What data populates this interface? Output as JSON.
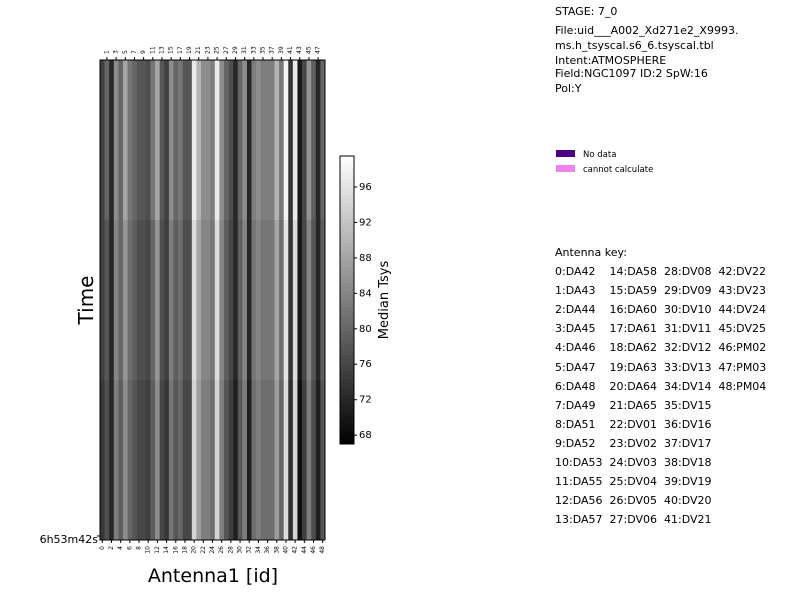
{
  "info": {
    "stage": "STAGE: 7_0",
    "file1": "File:uid___A002_Xd271e2_X9993.",
    "file2": "ms.h_tsyscal.s6_6.tsyscal.tbl",
    "intent": "Intent:ATMOSPHERE",
    "field": "Field:NGC1097 ID:2 SpW:16",
    "pol": "Pol:Y"
  },
  "legend": [
    {
      "label": "No data",
      "color": "#4b0082"
    },
    {
      "label": "cannot calculate",
      "color": "#ee82ee"
    }
  ],
  "antenna_key": {
    "title": "Antenna key:",
    "lines": [
      "0:DA42    14:DA58  28:DV08  42:DV22",
      "1:DA43    15:DA59  29:DV09  43:DV23",
      "2:DA44    16:DA60  30:DV10  44:DV24",
      "3:DA45    17:DA61  31:DV11  45:DV25",
      "4:DA46    18:DA62  32:DV12  46:PM02",
      "5:DA47    19:DA63  33:DV13  47:PM03",
      "6:DA48    20:DA64  34:DV14  48:PM04",
      "7:DA49    21:DA65  35:DV15",
      "8:DA51    22:DV01  36:DV16",
      "9:DA52    23:DV02  37:DV17",
      "10:DA53  24:DV03  38:DV18",
      "11:DA55  25:DV04  39:DV19",
      "12:DA56  26:DV05  40:DV20",
      "13:DA57  27:DV06  41:DV21"
    ]
  },
  "chart_data": {
    "type": "heatmap",
    "xlabel": "Antenna1 [id]",
    "ylabel": "Time",
    "colorbar_label": "Median Tsys",
    "colorbar_ticks": [
      68,
      72,
      76,
      80,
      84,
      88,
      92,
      96
    ],
    "colorbar_range": [
      67,
      99.5
    ],
    "colormap": "gray",
    "x_ticks_bottom": [
      0,
      2,
      4,
      6,
      8,
      10,
      12,
      14,
      16,
      18,
      20,
      22,
      24,
      26,
      28,
      30,
      32,
      34,
      36,
      38,
      40,
      42,
      44,
      46,
      48
    ],
    "x_ticks_top": [
      1,
      3,
      5,
      7,
      9,
      11,
      13,
      15,
      17,
      19,
      21,
      23,
      25,
      27,
      29,
      31,
      33,
      35,
      37,
      39,
      41,
      43,
      45,
      47
    ],
    "y_tick_labels": [
      "6h53m42s"
    ],
    "time_rows": 3,
    "antennas": [
      0,
      1,
      2,
      3,
      4,
      5,
      6,
      7,
      8,
      9,
      10,
      11,
      12,
      13,
      14,
      15,
      16,
      17,
      18,
      19,
      20,
      21,
      22,
      23,
      24,
      25,
      26,
      27,
      28,
      29,
      30,
      31,
      32,
      33,
      34,
      35,
      36,
      37,
      38,
      39,
      40,
      41,
      42,
      43,
      44,
      45,
      46,
      47,
      48
    ],
    "values": [
      [
        75,
        80,
        72,
        85,
        80,
        88,
        82,
        80,
        78,
        78,
        77,
        82,
        88,
        78,
        75,
        85,
        80,
        82,
        78,
        78,
        97,
        90,
        85,
        85,
        83,
        97,
        85,
        80,
        77,
        72,
        80,
        85,
        72,
        83,
        85,
        83,
        83,
        83,
        90,
        82,
        98,
        74,
        97,
        70,
        76,
        86,
        79,
        72,
        80
      ],
      [
        75,
        78,
        72,
        84,
        80,
        86,
        81,
        79,
        77,
        77,
        76,
        80,
        86,
        77,
        75,
        83,
        79,
        81,
        77,
        77,
        95,
        88,
        84,
        84,
        82,
        95,
        84,
        79,
        76,
        72,
        79,
        84,
        72,
        82,
        84,
        82,
        82,
        82,
        88,
        81,
        96,
        74,
        95,
        70,
        76,
        84,
        78,
        72,
        79
      ],
      [
        74,
        77,
        72,
        83,
        79,
        85,
        80,
        78,
        76,
        76,
        75,
        79,
        85,
        76,
        74,
        82,
        78,
        80,
        76,
        76,
        94,
        87,
        83,
        83,
        81,
        94,
        83,
        78,
        75,
        71,
        78,
        83,
        71,
        81,
        83,
        81,
        81,
        81,
        87,
        80,
        95,
        73,
        94,
        69,
        75,
        83,
        77,
        71,
        78
      ]
    ]
  }
}
